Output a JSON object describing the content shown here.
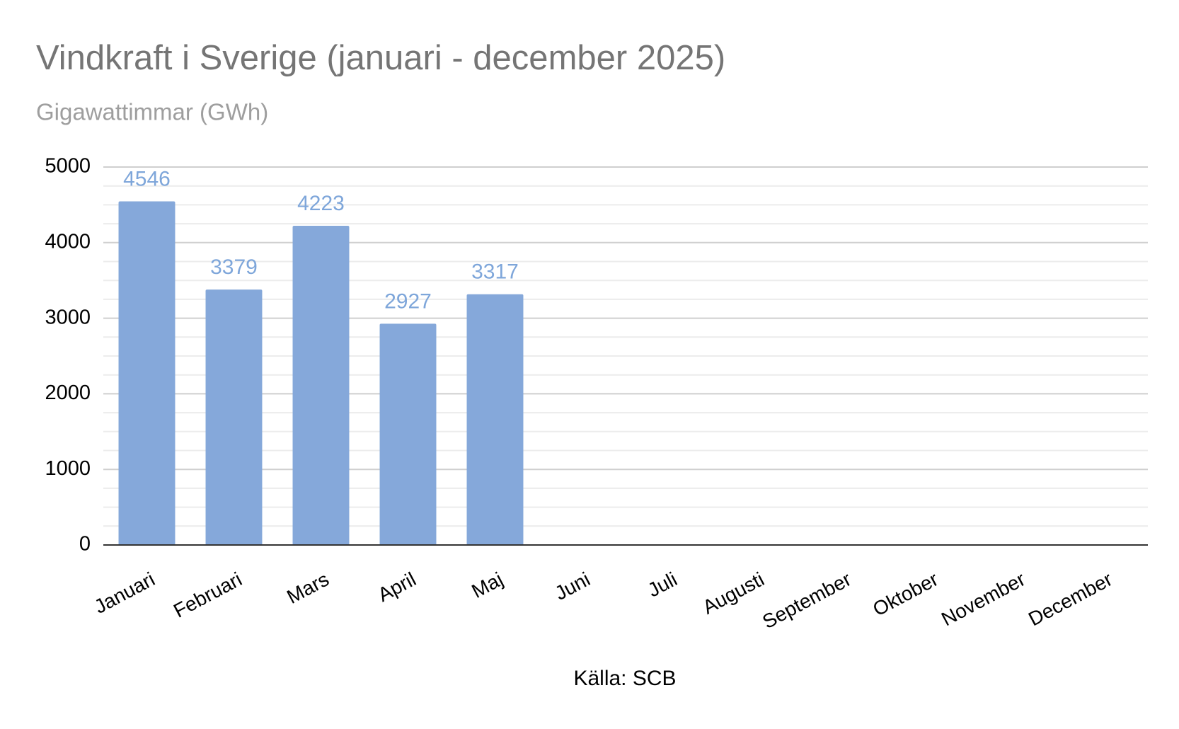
{
  "chart_data": {
    "type": "bar",
    "title": "Vindkraft i Sverige (januari - december 2025)",
    "subtitle": "Gigawattimmar (GWh)",
    "source": "Källa: SCB",
    "categories": [
      "Januari",
      "Februari",
      "Mars",
      "April",
      "Maj",
      "Juni",
      "Juli",
      "Augusti",
      "September",
      "Oktober",
      "November",
      "December"
    ],
    "values": [
      4546,
      3379,
      4223,
      2927,
      3317,
      null,
      null,
      null,
      null,
      null,
      null,
      null
    ],
    "color": "#85a8da",
    "label_color": "#7ea6da",
    "ylim": [
      0,
      5000
    ],
    "yticks": [
      0,
      1000,
      2000,
      3000,
      4000,
      5000
    ],
    "minor_yticks": [
      250,
      500,
      750,
      1250,
      1500,
      1750,
      2250,
      2500,
      2750,
      3250,
      3500,
      3750,
      4250,
      4500,
      4750
    ],
    "grid": true
  }
}
